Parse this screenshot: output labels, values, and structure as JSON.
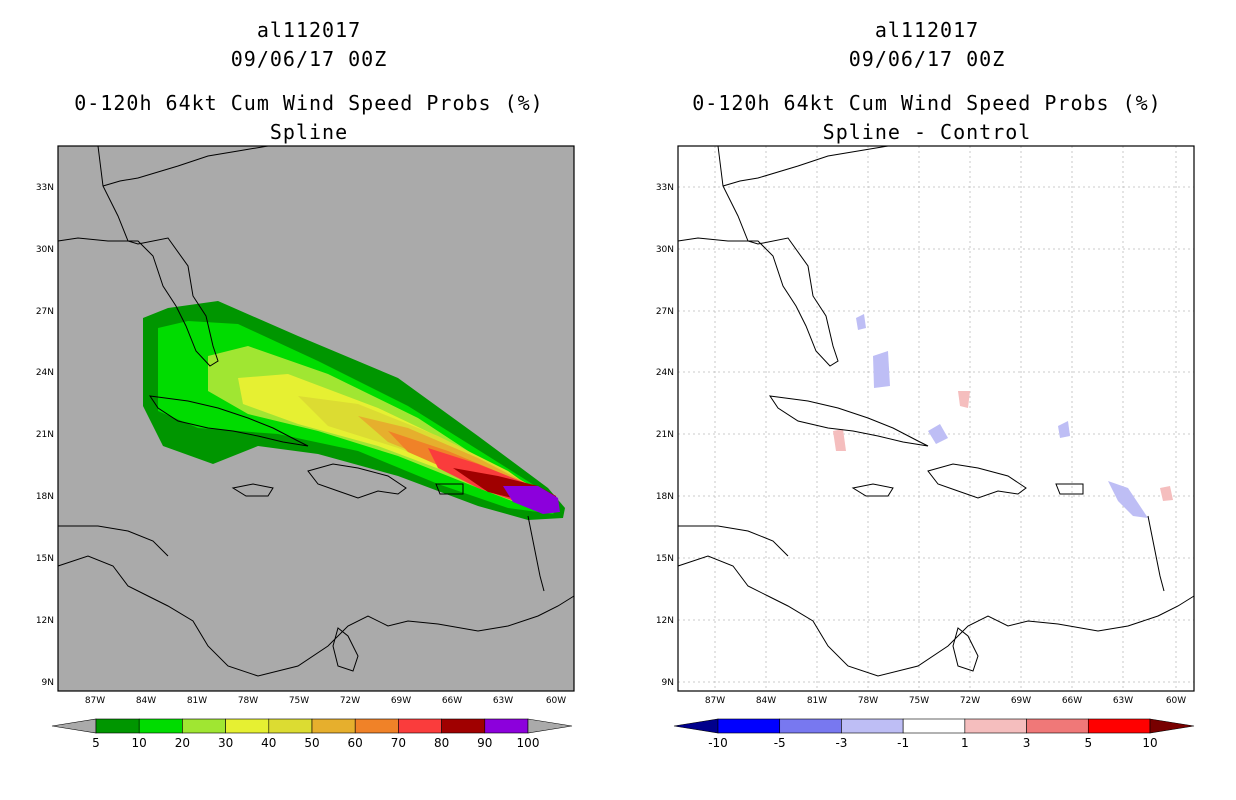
{
  "panels": [
    {
      "storm_id": "al112017",
      "date": "09/06/17 00Z",
      "product": "0-120h 64kt Cum Wind Speed Probs (%)",
      "method": "Spline",
      "background": "#aaaaaa",
      "gridlines": false,
      "colorbar": {
        "labels": [
          "5",
          "10",
          "20",
          "30",
          "40",
          "50",
          "60",
          "70",
          "80",
          "90",
          "100"
        ],
        "colors": [
          "#009600",
          "#00dc00",
          "#a0e632",
          "#e6f032",
          "#dcdc32",
          "#e6af2d",
          "#f08228",
          "#fa3c3c",
          "#a00000",
          "#8c00dc"
        ],
        "end_left": "#aaaaaa",
        "end_right": "#aaaaaa"
      }
    },
    {
      "storm_id": "al112017",
      "date": "09/06/17 00Z",
      "product": "0-120h 64kt Cum Wind Speed Probs (%)",
      "method": "Spline - Control",
      "background": "#ffffff",
      "gridlines": true,
      "colorbar": {
        "labels": [
          "-10",
          "-5",
          "-3",
          "-1",
          "1",
          "3",
          "5",
          "10"
        ],
        "colors": [
          "#0000ff",
          "#7878f0",
          "#bebef5",
          "#ffffff",
          "#f5bebe",
          "#f07878",
          "#ff0000"
        ],
        "end_left": "#00008c",
        "end_right": "#780000"
      }
    }
  ],
  "axes": {
    "lon_ticks": [
      "87W",
      "84W",
      "81W",
      "78W",
      "75W",
      "72W",
      "69W",
      "66W",
      "63W",
      "60W"
    ],
    "lat_ticks": [
      "9N",
      "12N",
      "15N",
      "18N",
      "21N",
      "24N",
      "27N",
      "30N",
      "33N"
    ]
  }
}
